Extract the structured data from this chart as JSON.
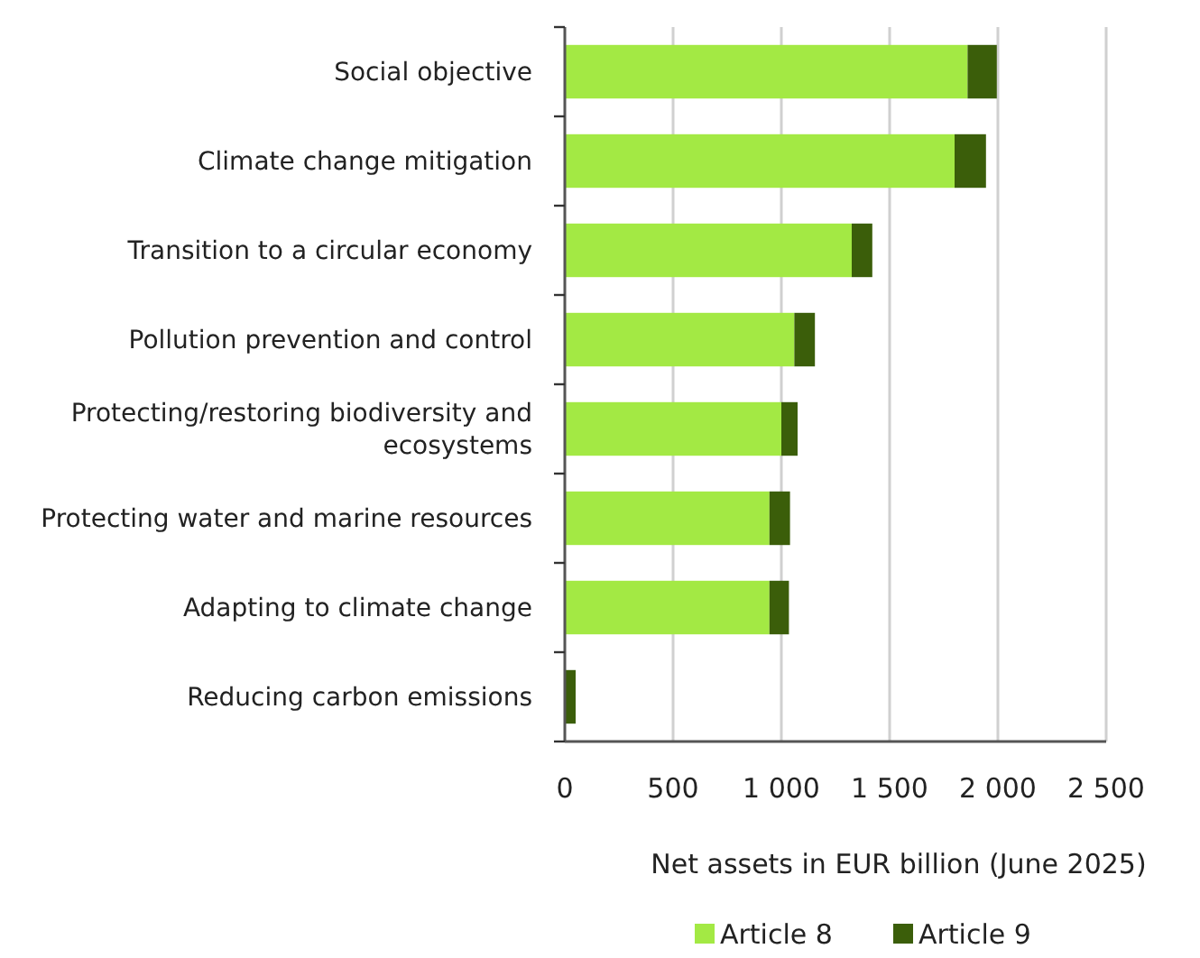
{
  "chart_data": {
    "type": "bar",
    "orientation": "horizontal",
    "stacked": true,
    "xlabel": "Net assets in EUR billion (June 2025)",
    "categories": [
      "Social objective",
      "Climate change mitigation",
      "Transition to a circular economy",
      "Pollution prevention and control",
      "Protecting/restoring biodiversity and ecosystems",
      "Protecting water and marine resources",
      "Adapting to climate change",
      "Reducing carbon emissions"
    ],
    "series": [
      {
        "name": "Article 8",
        "color": "#a3e944",
        "values": [
          1860,
          1800,
          1325,
          1060,
          1000,
          945,
          945,
          0
        ]
      },
      {
        "name": "Article 9",
        "color": "#3b5e0a",
        "values": [
          135,
          145,
          95,
          95,
          75,
          95,
          90,
          50
        ]
      }
    ],
    "xlim": [
      0,
      2500
    ],
    "xticks": [
      0,
      {
        "value": 500,
        "label": "500"
      },
      {
        "value": 1000,
        "label": "1 000"
      },
      {
        "value": 1500,
        "label": "1 500"
      },
      {
        "value": 2000,
        "label": "2 000"
      },
      {
        "value": 2500,
        "label": "2 500"
      }
    ],
    "grid": "x",
    "legend": "bottom"
  }
}
